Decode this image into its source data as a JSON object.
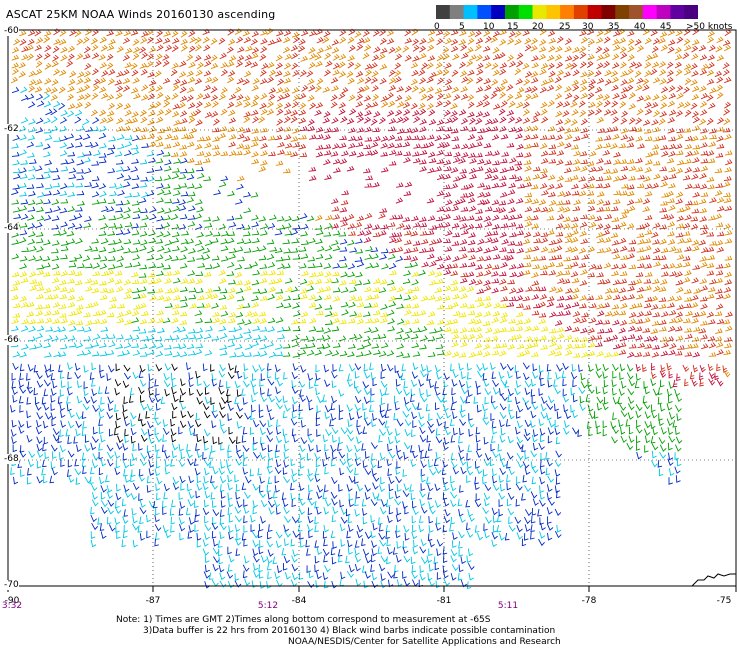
{
  "title": "ASCAT 25KM NOAA Winds 20160130 ascending",
  "scale": {
    "colors": [
      "#404040",
      "#7f7f7f",
      "#00bfff",
      "#0050ff",
      "#0000c0",
      "#00a000",
      "#00e000",
      "#e8e800",
      "#ffc400",
      "#ff8000",
      "#e04000",
      "#c00000",
      "#800000",
      "#804000",
      "#a0522d",
      "#ff00ff",
      "#c000c0",
      "#6000a0",
      "#4b0082"
    ],
    "labels": [
      "0",
      "5",
      "10",
      "15",
      "20",
      "25",
      "30",
      "35",
      "40",
      "45",
      ">50 knots"
    ]
  },
  "lat_labels": [
    "-60",
    "-62",
    "-64",
    "-66",
    "-68",
    "-70"
  ],
  "lon_labels": [
    "-90",
    "-87",
    "-84",
    "-81",
    "-78",
    "-75"
  ],
  "time_labels": [
    "3:32",
    "5:12",
    "5:11"
  ],
  "notes": [
    "Note: 1) Times are GMT 2)Times along bottom correspond to measurement at -65S",
    "3)Data buffer is 22 hrs from 20160130 4) Black wind barbs indicate possible contamination",
    "NOAA/NESDIS/Center for Satellite Applications and Research"
  ],
  "wind_colors": {
    "black": "#000000",
    "cyan": "#00c8e6",
    "blue": "#0028c8",
    "green": "#00a000",
    "yellow": "#f0e600",
    "orange": "#e08a00",
    "red": "#d03020",
    "crimson": "#c0103c"
  }
}
